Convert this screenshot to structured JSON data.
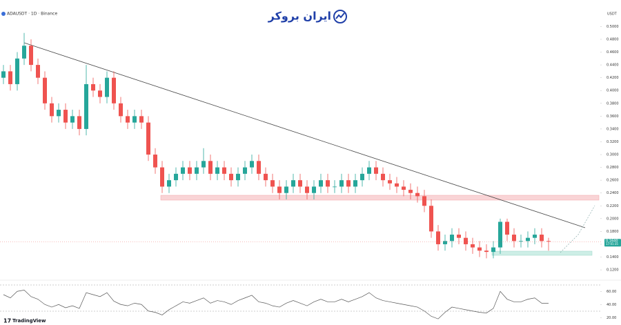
{
  "brand": "ایران بروکر",
  "footer": "TradingView",
  "chart_data": {
    "type": "candlestick",
    "title": "ADAUSDT · 1D · Binance",
    "unit": "USDT",
    "up_color": "#26a69a",
    "down_color": "#ef5350",
    "open": [
      0.42,
      0.43,
      0.41,
      0.45,
      0.47,
      0.44,
      0.42,
      0.38,
      0.36,
      0.37,
      0.35,
      0.36,
      0.34,
      0.41,
      0.4,
      0.39,
      0.42,
      0.38,
      0.36,
      0.35,
      0.36,
      0.35,
      0.3,
      0.28,
      0.25,
      0.26,
      0.27,
      0.28,
      0.27,
      0.28,
      0.29,
      0.27,
      0.28,
      0.27,
      0.26,
      0.27,
      0.28,
      0.29,
      0.27,
      0.26,
      0.25,
      0.24,
      0.25,
      0.26,
      0.25,
      0.24,
      0.25,
      0.26,
      0.25,
      0.25,
      0.26,
      0.25,
      0.26,
      0.27,
      0.28,
      0.27,
      0.26,
      0.255,
      0.25,
      0.245,
      0.24,
      0.235,
      0.22,
      0.18,
      0.16,
      0.165,
      0.175,
      0.17,
      0.16,
      0.155,
      0.15,
      0.148,
      0.155,
      0.195,
      0.175,
      0.165,
      0.165,
      0.17,
      0.175,
      0.165
    ],
    "high": [
      0.44,
      0.44,
      0.46,
      0.49,
      0.48,
      0.45,
      0.43,
      0.39,
      0.38,
      0.38,
      0.37,
      0.37,
      0.44,
      0.42,
      0.41,
      0.43,
      0.43,
      0.39,
      0.37,
      0.37,
      0.37,
      0.36,
      0.31,
      0.29,
      0.27,
      0.28,
      0.29,
      0.29,
      0.29,
      0.31,
      0.3,
      0.29,
      0.29,
      0.28,
      0.28,
      0.29,
      0.3,
      0.3,
      0.28,
      0.27,
      0.26,
      0.26,
      0.27,
      0.27,
      0.26,
      0.26,
      0.27,
      0.27,
      0.26,
      0.27,
      0.27,
      0.27,
      0.28,
      0.29,
      0.29,
      0.28,
      0.27,
      0.265,
      0.26,
      0.255,
      0.25,
      0.245,
      0.23,
      0.19,
      0.175,
      0.185,
      0.185,
      0.18,
      0.17,
      0.165,
      0.16,
      0.165,
      0.2,
      0.2,
      0.185,
      0.175,
      0.18,
      0.185,
      0.185,
      0.17
    ],
    "low": [
      0.41,
      0.4,
      0.4,
      0.44,
      0.43,
      0.41,
      0.37,
      0.35,
      0.35,
      0.34,
      0.34,
      0.33,
      0.33,
      0.39,
      0.38,
      0.38,
      0.37,
      0.35,
      0.34,
      0.34,
      0.34,
      0.29,
      0.27,
      0.24,
      0.24,
      0.25,
      0.26,
      0.26,
      0.26,
      0.27,
      0.26,
      0.26,
      0.26,
      0.25,
      0.25,
      0.26,
      0.27,
      0.26,
      0.25,
      0.24,
      0.23,
      0.23,
      0.24,
      0.24,
      0.23,
      0.23,
      0.24,
      0.24,
      0.24,
      0.24,
      0.24,
      0.24,
      0.25,
      0.26,
      0.26,
      0.25,
      0.245,
      0.24,
      0.235,
      0.23,
      0.225,
      0.21,
      0.17,
      0.15,
      0.15,
      0.155,
      0.16,
      0.15,
      0.145,
      0.14,
      0.138,
      0.138,
      0.145,
      0.165,
      0.155,
      0.155,
      0.155,
      0.16,
      0.155,
      0.15
    ],
    "close": [
      0.43,
      0.41,
      0.45,
      0.47,
      0.44,
      0.42,
      0.38,
      0.36,
      0.37,
      0.35,
      0.36,
      0.34,
      0.41,
      0.4,
      0.39,
      0.42,
      0.38,
      0.36,
      0.35,
      0.36,
      0.35,
      0.3,
      0.28,
      0.25,
      0.26,
      0.27,
      0.28,
      0.27,
      0.28,
      0.29,
      0.27,
      0.28,
      0.27,
      0.26,
      0.27,
      0.28,
      0.29,
      0.27,
      0.26,
      0.25,
      0.24,
      0.25,
      0.26,
      0.25,
      0.24,
      0.25,
      0.26,
      0.25,
      0.25,
      0.26,
      0.25,
      0.26,
      0.27,
      0.28,
      0.27,
      0.26,
      0.255,
      0.25,
      0.245,
      0.24,
      0.235,
      0.22,
      0.18,
      0.16,
      0.165,
      0.175,
      0.17,
      0.16,
      0.155,
      0.15,
      0.148,
      0.155,
      0.195,
      0.175,
      0.165,
      0.165,
      0.17,
      0.175,
      0.165,
      0.164
    ],
    "ylim": [
      0.105,
      0.536
    ],
    "yticks": [
      {
        "value": 0.12,
        "label": "0.1200"
      },
      {
        "value": 0.14,
        "label": "0.1400"
      },
      {
        "value": 0.16,
        "label": "0.1600"
      },
      {
        "value": 0.18,
        "label": "0.1800"
      },
      {
        "value": 0.2,
        "label": "0.2000"
      },
      {
        "value": 0.22,
        "label": "0.2200"
      },
      {
        "value": 0.24,
        "label": "0.2400"
      },
      {
        "value": 0.26,
        "label": "0.2600"
      },
      {
        "value": 0.28,
        "label": "0.2800"
      },
      {
        "value": 0.3,
        "label": "0.3000"
      },
      {
        "value": 0.32,
        "label": "0.3200"
      },
      {
        "value": 0.34,
        "label": "0.3400"
      },
      {
        "value": 0.36,
        "label": "0.3600"
      },
      {
        "value": 0.38,
        "label": "0.3800"
      },
      {
        "value": 0.4,
        "label": "0.4000"
      },
      {
        "value": 0.42,
        "label": "0.4200"
      },
      {
        "value": 0.44,
        "label": "0.4400"
      },
      {
        "value": 0.46,
        "label": "0.4600"
      },
      {
        "value": 0.48,
        "label": "0.4800"
      },
      {
        "value": 0.5,
        "label": "0.5000"
      }
    ],
    "last_price": {
      "value": 0.164,
      "label": "0.1640"
    },
    "countdown": "17:01:35",
    "rsi": {
      "color": "#555555",
      "ylim": [
        15,
        75
      ],
      "yticks": [
        {
          "value": 20,
          "label": "20.00"
        },
        {
          "value": 40,
          "label": "40.00"
        },
        {
          "value": 60,
          "label": "60.00"
        }
      ],
      "values": [
        55,
        50,
        60,
        62,
        52,
        48,
        40,
        36,
        40,
        35,
        38,
        34,
        58,
        55,
        52,
        58,
        45,
        40,
        38,
        42,
        40,
        30,
        28,
        24,
        32,
        38,
        44,
        42,
        46,
        50,
        42,
        46,
        44,
        40,
        46,
        50,
        54,
        44,
        42,
        38,
        36,
        42,
        46,
        42,
        38,
        44,
        48,
        44,
        44,
        48,
        44,
        48,
        52,
        58,
        50,
        46,
        44,
        42,
        40,
        38,
        36,
        30,
        22,
        18,
        28,
        36,
        34,
        32,
        30,
        28,
        27,
        34,
        60,
        48,
        44,
        44,
        48,
        50,
        42,
        42
      ]
    }
  }
}
